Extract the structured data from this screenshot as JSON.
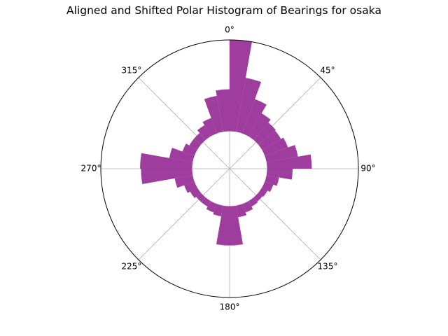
{
  "chart_data": {
    "type": "bar",
    "subtype": "polar-histogram",
    "title": "Aligned and Shifted Polar Histogram of Bearings for osaka",
    "theta_direction": "clockwise",
    "theta_zero": "north",
    "theta_tick_labels": [
      "0°",
      "45°",
      "90°",
      "135°",
      "180°",
      "225°",
      "270°",
      "315°"
    ],
    "theta_ticks_deg": [
      0,
      45,
      90,
      135,
      180,
      225,
      270,
      315
    ],
    "radial_tick_labels_shown": false,
    "radial_grid": false,
    "angular_grid": true,
    "bar_color": "#993399",
    "bar_opacity": 0.95,
    "r_inner_offset": 0.41,
    "r_max": 1.0,
    "bin_width_deg": 10,
    "bin_centers_deg": [
      5,
      15,
      25,
      35,
      45,
      55,
      65,
      75,
      85,
      95,
      105,
      115,
      125,
      135,
      145,
      155,
      165,
      175,
      185,
      195,
      205,
      215,
      225,
      235,
      245,
      255,
      265,
      275,
      285,
      295,
      305,
      315,
      325,
      335,
      345,
      355
    ],
    "values": [
      1.0,
      0.6,
      0.4,
      0.29,
      0.25,
      0.24,
      0.27,
      0.35,
      0.49,
      0.28,
      0.14,
      0.1,
      0.07,
      0.06,
      0.07,
      0.1,
      0.13,
      0.43,
      0.43,
      0.12,
      0.1,
      0.07,
      0.07,
      0.09,
      0.12,
      0.2,
      0.56,
      0.57,
      0.26,
      0.14,
      0.1,
      0.1,
      0.14,
      0.18,
      0.4,
      0.46
    ]
  }
}
